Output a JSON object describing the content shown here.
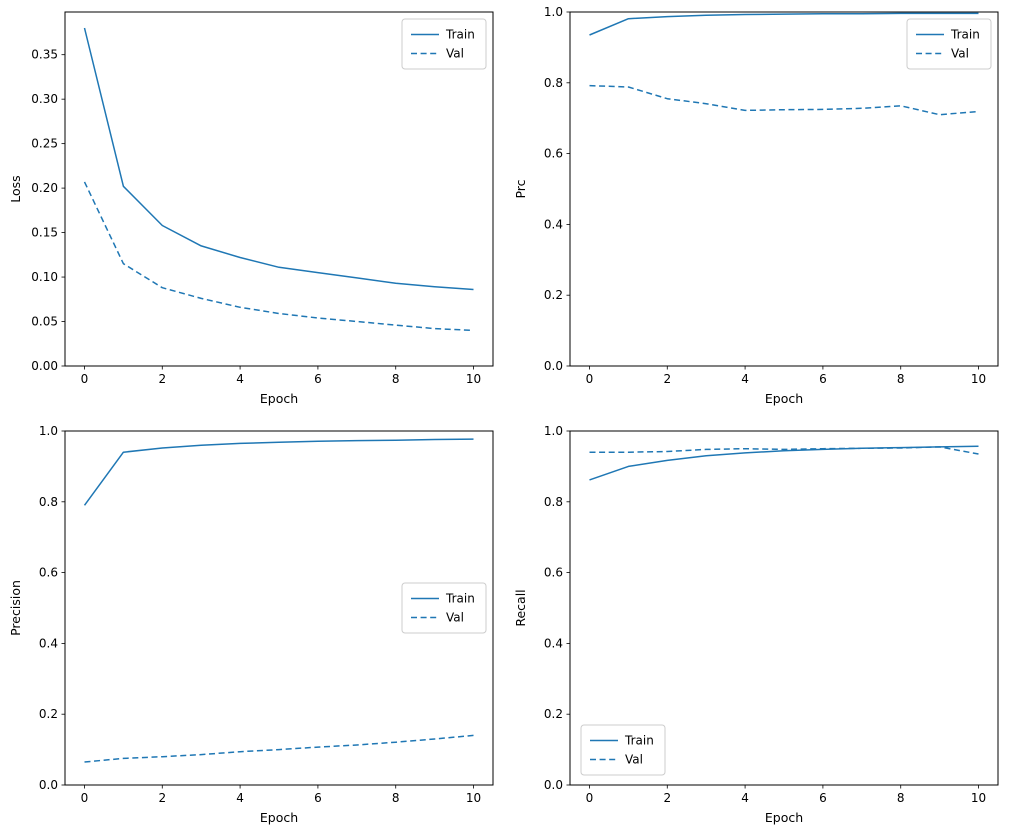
{
  "figure": {
    "background": "#ffffff",
    "accent_color": "#1f77b4",
    "axis_color": "#000000",
    "legend_border_color": "#cccccc"
  },
  "chart_data": [
    {
      "id": "loss",
      "type": "line",
      "title": "",
      "xlabel": "Epoch",
      "ylabel": "Loss",
      "x": [
        0,
        1,
        2,
        3,
        4,
        5,
        6,
        7,
        8,
        9,
        10
      ],
      "xlim": [
        -0.5,
        10.5
      ],
      "ylim": [
        0,
        0.398
      ],
      "xticks": [
        0,
        2,
        4,
        6,
        8,
        10
      ],
      "xtick_labels": [
        "0",
        "2",
        "4",
        "6",
        "8",
        "10"
      ],
      "yticks": [
        0.0,
        0.05,
        0.1,
        0.15,
        0.2,
        0.25,
        0.3,
        0.35
      ],
      "ytick_labels": [
        "0.00",
        "0.05",
        "0.10",
        "0.15",
        "0.20",
        "0.25",
        "0.30",
        "0.35"
      ],
      "grid": false,
      "legend_position": "upper-right",
      "legend_entries": [
        "Train",
        "Val"
      ],
      "series": [
        {
          "name": "Train",
          "line_style": "solid",
          "values": [
            0.38,
            0.202,
            0.158,
            0.135,
            0.122,
            0.111,
            0.105,
            0.099,
            0.093,
            0.089,
            0.086
          ]
        },
        {
          "name": "Val",
          "line_style": "dashed",
          "values": [
            0.207,
            0.115,
            0.088,
            0.076,
            0.066,
            0.059,
            0.054,
            0.05,
            0.046,
            0.042,
            0.04
          ]
        }
      ]
    },
    {
      "id": "prc",
      "type": "line",
      "title": "",
      "xlabel": "Epoch",
      "ylabel": "Prc",
      "x": [
        0,
        1,
        2,
        3,
        4,
        5,
        6,
        7,
        8,
        9,
        10
      ],
      "xlim": [
        -0.5,
        10.5
      ],
      "ylim": [
        0,
        1.0
      ],
      "xticks": [
        0,
        2,
        4,
        6,
        8,
        10
      ],
      "xtick_labels": [
        "0",
        "2",
        "4",
        "6",
        "8",
        "10"
      ],
      "yticks": [
        0.0,
        0.2,
        0.4,
        0.6,
        0.8,
        1.0
      ],
      "ytick_labels": [
        "0.0",
        "0.2",
        "0.4",
        "0.6",
        "0.8",
        "1.0"
      ],
      "grid": false,
      "legend_position": "upper-right",
      "legend_entries": [
        "Train",
        "Val"
      ],
      "series": [
        {
          "name": "Train",
          "line_style": "solid",
          "values": [
            0.935,
            0.981,
            0.987,
            0.991,
            0.993,
            0.994,
            0.995,
            0.995,
            0.996,
            0.996,
            0.996
          ]
        },
        {
          "name": "Val",
          "line_style": "dashed",
          "values": [
            0.792,
            0.788,
            0.755,
            0.741,
            0.722,
            0.724,
            0.725,
            0.728,
            0.735,
            0.71,
            0.719
          ]
        }
      ]
    },
    {
      "id": "precision",
      "type": "line",
      "title": "",
      "xlabel": "Epoch",
      "ylabel": "Precision",
      "x": [
        0,
        1,
        2,
        3,
        4,
        5,
        6,
        7,
        8,
        9,
        10
      ],
      "xlim": [
        -0.5,
        10.5
      ],
      "ylim": [
        0,
        1.0
      ],
      "xticks": [
        0,
        2,
        4,
        6,
        8,
        10
      ],
      "xtick_labels": [
        "0",
        "2",
        "4",
        "6",
        "8",
        "10"
      ],
      "yticks": [
        0.0,
        0.2,
        0.4,
        0.6,
        0.8,
        1.0
      ],
      "ytick_labels": [
        "0.0",
        "0.2",
        "0.4",
        "0.6",
        "0.8",
        "1.0"
      ],
      "grid": false,
      "legend_position": "center-right",
      "legend_entries": [
        "Train",
        "Val"
      ],
      "series": [
        {
          "name": "Train",
          "line_style": "solid",
          "values": [
            0.79,
            0.94,
            0.952,
            0.96,
            0.965,
            0.968,
            0.971,
            0.973,
            0.974,
            0.976,
            0.977
          ]
        },
        {
          "name": "Val",
          "line_style": "dashed",
          "values": [
            0.065,
            0.075,
            0.08,
            0.086,
            0.094,
            0.1,
            0.107,
            0.113,
            0.121,
            0.13,
            0.14
          ]
        }
      ]
    },
    {
      "id": "recall",
      "type": "line",
      "title": "",
      "xlabel": "Epoch",
      "ylabel": "Recall",
      "x": [
        0,
        1,
        2,
        3,
        4,
        5,
        6,
        7,
        8,
        9,
        10
      ],
      "xlim": [
        -0.5,
        10.5
      ],
      "ylim": [
        0,
        1.0
      ],
      "xticks": [
        0,
        2,
        4,
        6,
        8,
        10
      ],
      "xtick_labels": [
        "0",
        "2",
        "4",
        "6",
        "8",
        "10"
      ],
      "yticks": [
        0.0,
        0.2,
        0.4,
        0.6,
        0.8,
        1.0
      ],
      "ytick_labels": [
        "0.0",
        "0.2",
        "0.4",
        "0.6",
        "0.8",
        "1.0"
      ],
      "grid": false,
      "legend_position": "lower-left",
      "legend_entries": [
        "Train",
        "Val"
      ],
      "series": [
        {
          "name": "Train",
          "line_style": "solid",
          "values": [
            0.862,
            0.9,
            0.917,
            0.93,
            0.938,
            0.944,
            0.948,
            0.951,
            0.953,
            0.955,
            0.957
          ]
        },
        {
          "name": "Val",
          "line_style": "dashed",
          "values": [
            0.94,
            0.94,
            0.942,
            0.948,
            0.95,
            0.948,
            0.95,
            0.951,
            0.952,
            0.955,
            0.935
          ]
        }
      ]
    }
  ]
}
